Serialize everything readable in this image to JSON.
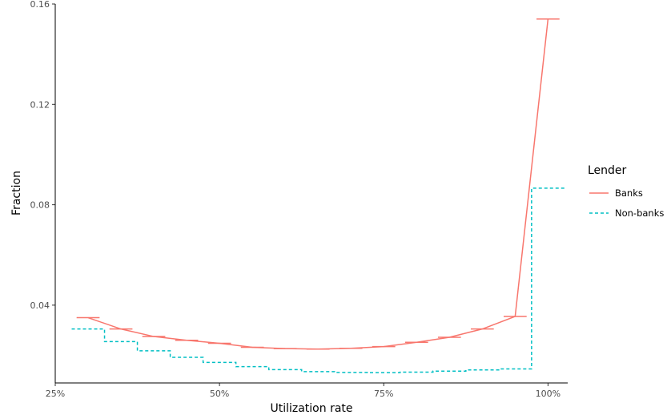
{
  "chart_data": {
    "type": "line",
    "xlabel": "Utilization rate",
    "ylabel": "Fraction",
    "xlim": [
      0.25,
      1.03
    ],
    "ylim": [
      0.009,
      0.16
    ],
    "x_ticks": [
      {
        "value": 0.25,
        "label": "25%"
      },
      {
        "value": 0.5,
        "label": "50%"
      },
      {
        "value": 0.75,
        "label": "75%"
      },
      {
        "value": 1.0,
        "label": "100%"
      }
    ],
    "y_ticks": [
      {
        "value": 0.04,
        "label": "0.04"
      },
      {
        "value": 0.08,
        "label": "0.08"
      },
      {
        "value": 0.12,
        "label": "0.12"
      },
      {
        "value": 0.16,
        "label": "0.16"
      }
    ],
    "legend": {
      "title": "Lender",
      "placement": "right"
    },
    "bin_width": 0.05,
    "series": [
      {
        "name": "Banks",
        "color": "#F8766D",
        "dash": "solid",
        "x": [
          0.3,
          0.35,
          0.4,
          0.45,
          0.5,
          0.55,
          0.6,
          0.65,
          0.7,
          0.75,
          0.8,
          0.85,
          0.9,
          0.95,
          1.0
        ],
        "values": [
          0.035,
          0.0305,
          0.0275,
          0.026,
          0.0248,
          0.0232,
          0.0227,
          0.0225,
          0.0228,
          0.0235,
          0.0252,
          0.0272,
          0.0305,
          0.0355,
          0.154
        ]
      },
      {
        "name": "Non-banks",
        "color": "#00BFC4",
        "dash": "dashed",
        "x": [
          0.3,
          0.35,
          0.4,
          0.45,
          0.5,
          0.55,
          0.6,
          0.65,
          0.7,
          0.75,
          0.8,
          0.85,
          0.9,
          0.95,
          1.0
        ],
        "values": [
          0.0305,
          0.0255,
          0.0218,
          0.0192,
          0.0172,
          0.0155,
          0.0143,
          0.0135,
          0.0132,
          0.0131,
          0.0133,
          0.0137,
          0.0142,
          0.0146,
          0.0866
        ]
      }
    ]
  }
}
